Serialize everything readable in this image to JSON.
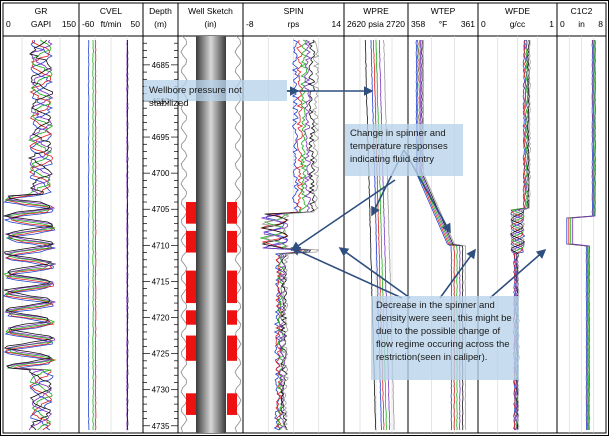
{
  "tracks": [
    {
      "id": "gr",
      "name": "GR",
      "unit": "GAPI",
      "min": "0",
      "max": "150"
    },
    {
      "id": "cvel",
      "name": "CVEL",
      "unit": "ft/min",
      "min": "-60",
      "max": "50"
    },
    {
      "id": "depth",
      "name": "Depth",
      "unit": "(m)",
      "min": "",
      "max": ""
    },
    {
      "id": "well",
      "name": "Well Sketch",
      "unit": "(in)",
      "min": "",
      "max": ""
    },
    {
      "id": "spin",
      "name": "SPIN",
      "unit": "rps",
      "min": "-8",
      "max": "14"
    },
    {
      "id": "wpre",
      "name": "WPRE",
      "unit": "psia",
      "min": "2620",
      "max": "2720"
    },
    {
      "id": "wtep",
      "name": "WTEP",
      "unit": "°F",
      "min": "358",
      "max": "361"
    },
    {
      "id": "wfde",
      "name": "WFDE",
      "unit": "g/cc",
      "min": "0",
      "max": "1"
    },
    {
      "id": "c1c2",
      "name": "C1C2",
      "unit": "in",
      "min": "0",
      "max": "8"
    }
  ],
  "annotations": {
    "pressure": "Wellbore pressure not stabilized",
    "fluid_entry": "Change in spinner and temperature responses indicating fluid entry",
    "decrease": "Decrease in the spinner and density were seen, this might be due to the possible change of flow regime occuring across the restriction(seen in caliper)."
  },
  "colors": {
    "pass1": "#1f3fd0",
    "pass2": "#e02020",
    "pass3": "#18b018",
    "pass4": "#7b2fc0",
    "pass5": "#111111",
    "pass6": "#9a9a9a",
    "restriction": "#ee1111",
    "arrow": "#2f4f7f",
    "note_bg": "#b7d4ea"
  },
  "chart_data": {
    "type": "line",
    "depth_axis": {
      "label": "Depth (m)",
      "range": [
        4681,
        4736
      ],
      "ticks": [
        4685,
        4690,
        4695,
        4700,
        4705,
        4710,
        4715,
        4720,
        4725,
        4730,
        4735
      ]
    },
    "restriction_depths_m": [
      [
        4704,
        4707
      ],
      [
        4708,
        4711
      ],
      [
        4713.5,
        4718
      ],
      [
        4719,
        4721
      ],
      [
        4722.5,
        4726
      ],
      [
        4730.5,
        4733.5
      ]
    ],
    "spin_step_depth_m": 4711,
    "density_step_depth_m": 4711,
    "temperature_step_depth_m": 4710
  }
}
